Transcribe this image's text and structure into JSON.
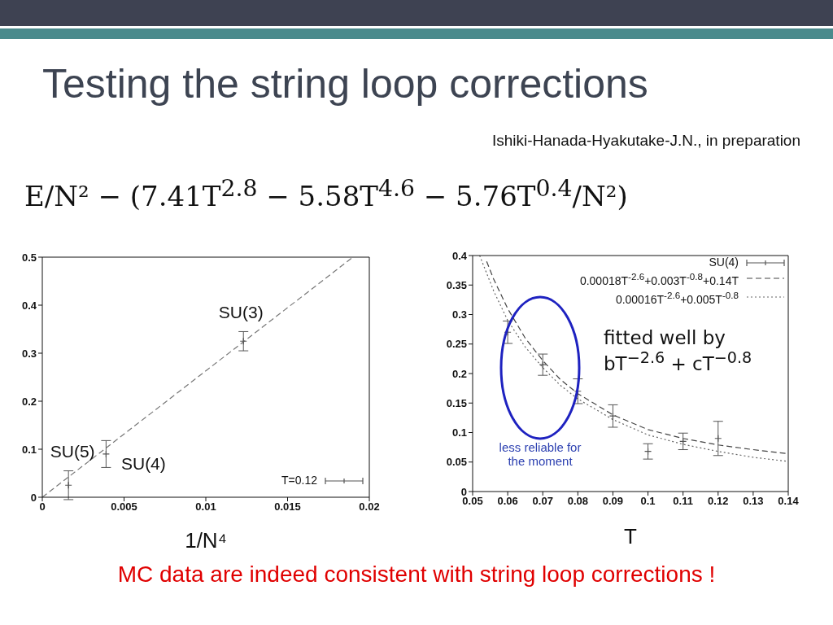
{
  "chart_data": [
    {
      "type": "scatter",
      "title": "Testing the string loop corrections",
      "xlabel": "1/N⁴",
      "xlim": [
        0,
        0.02
      ],
      "xticks": [
        0,
        0.005,
        0.01,
        0.015,
        0.02
      ],
      "ylim": [
        0,
        0.5
      ],
      "yticks": [
        0,
        0.1,
        0.2,
        0.3,
        0.4,
        0.5
      ],
      "legend": "bottom right",
      "series": [
        {
          "name": "T=0.12",
          "marker": "cross",
          "color": "#555555",
          "x": [
            0.0016,
            0.0039,
            0.0123
          ],
          "values": [
            0.025,
            0.09,
            0.325
          ],
          "errors": [
            0.03,
            0.028,
            0.02
          ]
        },
        {
          "type": "line",
          "color": "#777777",
          "line_style": "dashed",
          "x": [
            0,
            0.019
          ],
          "values": [
            0,
            0.5
          ]
        }
      ],
      "annotations": [
        "E/N² − (7.41T$^{2.8}$ − 5.58T$^{4.6}$ − 5.76T$^{0.4}$/N²)",
        "MC data are indeed consistent with string loop corrections !",
        {
          "text": "SU(5)",
          "x": 0.0016,
          "y": 0.025
        },
        {
          "text": "SU(4)",
          "x": 0.0039,
          "y": 0.09
        },
        {
          "text": "SU(3)",
          "x": 0.0123,
          "y": 0.325
        }
      ]
    },
    {
      "type": "scatter",
      "subtitle": "Ishiki-Hanada-Hyakutake-J.N., in preparation",
      "xlabel": "T",
      "xlim": [
        0.05,
        0.14
      ],
      "xticks": [
        0.05,
        0.06,
        0.07,
        0.08,
        0.09,
        0.1,
        0.11,
        0.12,
        0.13,
        0.14
      ],
      "ylim": [
        0,
        0.4
      ],
      "yticks": [
        0,
        0.05,
        0.1,
        0.15,
        0.2,
        0.25,
        0.3,
        0.35,
        0.4
      ],
      "legend": "top right",
      "series": [
        {
          "name": "SU(4)",
          "marker": "cross",
          "color": "#555555",
          "x": [
            0.06,
            0.07,
            0.08,
            0.09,
            0.1,
            0.11,
            0.12
          ],
          "values": [
            0.27,
            0.215,
            0.17,
            0.128,
            0.068,
            0.085,
            0.09
          ],
          "errors": [
            0.019,
            0.018,
            0.021,
            0.019,
            0.013,
            0.014,
            0.029
          ]
        },
        {
          "name": "0.00018T$^{-2.6}$+0.003T$^{-0.8}$+0.14T",
          "type": "line",
          "color": "#444444",
          "line_style": "dashed",
          "x": [
            0.054,
            0.056,
            0.06,
            0.065,
            0.07,
            0.075,
            0.08,
            0.09,
            0.1,
            0.11,
            0.12,
            0.13,
            0.14
          ],
          "values": [
            0.39,
            0.36,
            0.31,
            0.26,
            0.222,
            0.19,
            0.166,
            0.13,
            0.105,
            0.09,
            0.079,
            0.071,
            0.064
          ]
        },
        {
          "name": "0.00016T$^{-2.6}$+0.005T$^{-0.8}$",
          "type": "line",
          "color": "#666666",
          "line_style": "dotted",
          "x": [
            0.052,
            0.054,
            0.056,
            0.06,
            0.065,
            0.07,
            0.075,
            0.08,
            0.09,
            0.1,
            0.11,
            0.12,
            0.13,
            0.14
          ],
          "values": [
            0.4,
            0.37,
            0.34,
            0.29,
            0.245,
            0.21,
            0.18,
            0.157,
            0.122,
            0.096,
            0.08,
            0.068,
            0.058,
            0.051
          ]
        }
      ],
      "annotations": [
        "fitted well by bT$^{−2.6}$ + cT$^{−0.8}$",
        "less reliable for the moment"
      ]
    }
  ]
}
